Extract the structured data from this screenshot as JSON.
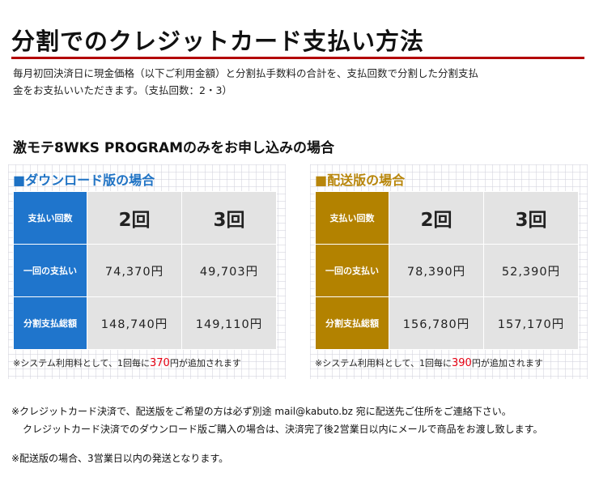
{
  "title": "分割でのクレジットカード支払い方法",
  "intro": [
    "毎月初回決済日に現金価格（以下ご利用金額）と分割払手数料の合計を、支払回数で分割した分割支払",
    "金をお支払いいただきます。（支払回数：2・3）"
  ],
  "section_title": "激モテ8WKS PROGRAMのみをお申し込みの場合",
  "download": {
    "heading": "■ダウンロード版の場合",
    "row_labels": [
      "支払い回数",
      "一回の支払い",
      "分割支払総額"
    ],
    "col_headers": [
      "2回",
      "3回"
    ],
    "per_payment": [
      "74,370円",
      "49,703円"
    ],
    "total": [
      "148,740円",
      "149,110円"
    ],
    "note_prefix": "※システム利用料として、1回毎に",
    "note_fee": "370",
    "note_suffix": "円が追加されます"
  },
  "delivery": {
    "heading": "■配送版の場合",
    "row_labels": [
      "支払い回数",
      "一回の支払い",
      "分割支払総額"
    ],
    "col_headers": [
      "2回",
      "3回"
    ],
    "per_payment": [
      "78,390円",
      "52,390円"
    ],
    "total": [
      "156,780円",
      "157,170円"
    ],
    "note_prefix": "※システム利用料として、1回毎に",
    "note_fee": "390",
    "note_suffix": "円が追加されます"
  },
  "footer": [
    "※クレジットカード決済で、配送版をご希望の方は必ず別途 mail@kabuto.bz 宛に配送先ご住所をご連絡下さい。",
    "クレジットカード決済でのダウンロード版ご購入の場合は、決済完了後2営業日以内にメールで商品をお渡し致します。",
    "※配送版の場合、3営業日以内の発送となります。"
  ],
  "colors": {
    "accent_rule": "#b30000",
    "download_blue": "#1f75cc",
    "delivery_gold": "#b38200",
    "fee_red": "#e60012"
  }
}
